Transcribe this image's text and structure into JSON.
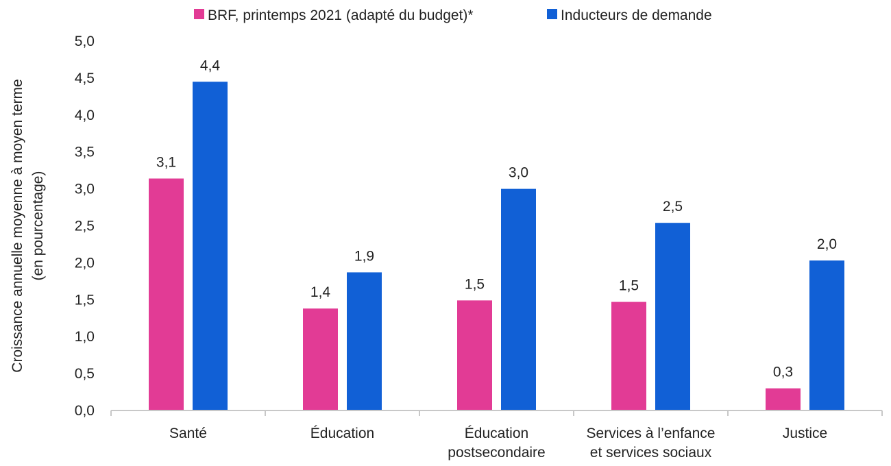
{
  "chart_data": {
    "type": "bar",
    "categories": [
      [
        "Santé"
      ],
      [
        "Éducation"
      ],
      [
        "Éducation",
        "postsecondaire"
      ],
      [
        "Services à l’enfance",
        "et services sociaux"
      ],
      [
        "Justice"
      ]
    ],
    "series": [
      {
        "name": "BRF, printemps 2021 (adapté du budget)*",
        "color": "#e23b95",
        "values": [
          3.14,
          1.38,
          1.49,
          1.47,
          0.3
        ],
        "labels": [
          "3,1",
          "1,4",
          "1,5",
          "1,5",
          "0,3"
        ]
      },
      {
        "name": "Inducteurs de demande",
        "color": "#1160d6",
        "values": [
          4.45,
          1.87,
          3.0,
          2.54,
          2.03
        ],
        "labels": [
          "4,4",
          "1,9",
          "3,0",
          "2,5",
          "2,0"
        ]
      }
    ],
    "ylabel": [
      "Croissance annuelle moyenne à moyen terme",
      "(en pourcentage)"
    ],
    "ylim": [
      0,
      5
    ],
    "yticks": [
      "0,0",
      "0,5",
      "1,0",
      "1,5",
      "2,0",
      "2,5",
      "3,0",
      "3,5",
      "4,0",
      "4,5",
      "5,0"
    ],
    "legend_position": "top",
    "grid": false
  }
}
